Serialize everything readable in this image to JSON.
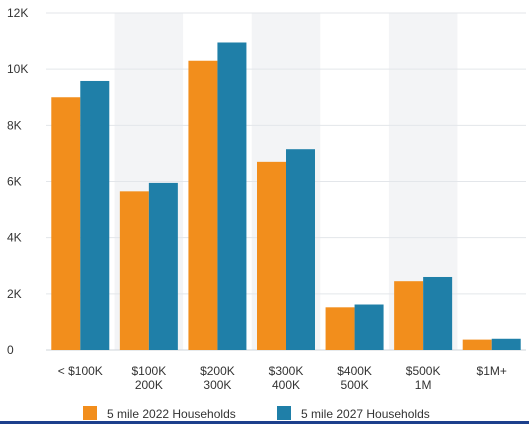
{
  "chart_data": {
    "type": "bar",
    "categories": [
      [
        "< $100K"
      ],
      [
        "$100K",
        "200K"
      ],
      [
        "$200K",
        "300K"
      ],
      [
        "$300K",
        "400K"
      ],
      [
        "$400K",
        "500K"
      ],
      [
        "$500K",
        "1M"
      ],
      [
        "$1M+"
      ]
    ],
    "series": [
      {
        "name": "5 mile 2022 Households",
        "color": "#f28e1c",
        "values": [
          9000,
          5650,
          10300,
          6700,
          1520,
          2450,
          370
        ]
      },
      {
        "name": "5 mile 2027 Households",
        "color": "#1f7fa8",
        "values": [
          9580,
          5950,
          10950,
          7150,
          1620,
          2600,
          400
        ]
      }
    ],
    "ylim": [
      0,
      12000
    ],
    "yticks": [
      0,
      2000,
      4000,
      6000,
      8000,
      10000,
      12000
    ],
    "ytick_labels": [
      "0",
      "2K",
      "4K",
      "6K",
      "8K",
      "10K",
      "12K"
    ],
    "title": "",
    "xlabel": "",
    "ylabel": "",
    "grid": true,
    "legend_position": "bottom"
  }
}
